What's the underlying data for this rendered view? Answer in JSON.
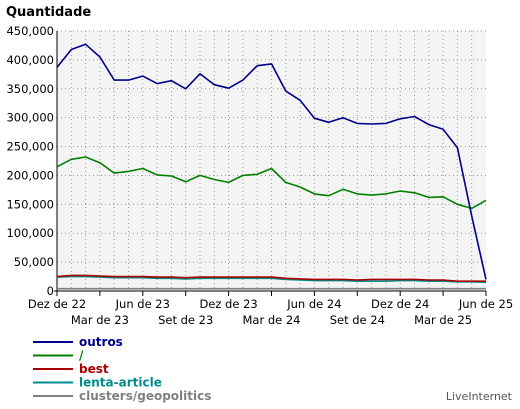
{
  "chart_data": {
    "type": "line",
    "ylabel": "Quantidade",
    "ylim": [
      0,
      450000
    ],
    "ytick_values": [
      0,
      50000,
      100000,
      150000,
      200000,
      250000,
      300000,
      350000,
      400000,
      450000
    ],
    "ytick_labels": [
      "0",
      "50,000",
      "100,000",
      "150,000",
      "200,000",
      "250,000",
      "300,000",
      "350,000",
      "400,000",
      "450,000"
    ],
    "x_start": "Dez de 22",
    "x_end": "Jun de 25",
    "x_upper_labels": [
      "Dez de 22",
      "Jun de 23",
      "Dez de 23",
      "Jun de 24",
      "Dez de 24",
      "Jun de 25"
    ],
    "x_lower_labels": [
      "Mar de 23",
      "Set de 23",
      "Mar de 24",
      "Set de 24",
      "Mar de 25"
    ],
    "grid": true,
    "legend_position": "bottom-left",
    "brand": "LiveInternet",
    "series": [
      {
        "name": "outros",
        "color": "#00008b",
        "values": [
          387000,
          418000,
          427000,
          405000,
          365000,
          365000,
          372000,
          359000,
          364000,
          350000,
          376000,
          357000,
          351000,
          365000,
          390000,
          393000,
          346000,
          330000,
          299000,
          292000,
          300000,
          290000,
          289000,
          290000,
          298000,
          302000,
          288000,
          280000,
          248000,
          130000,
          20000
        ]
      },
      {
        "name": "/",
        "color": "#008000",
        "values": [
          215000,
          228000,
          232000,
          222000,
          204000,
          207000,
          212000,
          201000,
          199000,
          189000,
          200000,
          193000,
          188000,
          200000,
          202000,
          212000,
          188000,
          180000,
          168000,
          165000,
          176000,
          168000,
          166000,
          168000,
          173000,
          170000,
          162000,
          163000,
          150000,
          143000,
          157000
        ]
      },
      {
        "name": "best",
        "color": "#aa0000",
        "values": [
          25000,
          27000,
          27000,
          26000,
          25000,
          25000,
          25000,
          24000,
          24000,
          23000,
          24000,
          24000,
          24000,
          24000,
          24000,
          24000,
          22000,
          21000,
          20000,
          20000,
          20000,
          19000,
          20000,
          20000,
          20000,
          20000,
          19000,
          19000,
          17000,
          17000,
          17000
        ]
      },
      {
        "name": "lenta-article",
        "color": "#008b8b",
        "values": [
          24000,
          25000,
          25000,
          24000,
          23000,
          23000,
          23000,
          22000,
          22000,
          21000,
          22000,
          22000,
          22000,
          22000,
          22000,
          22000,
          20000,
          19000,
          18000,
          18000,
          18000,
          17000,
          17000,
          17000,
          18000,
          18000,
          17000,
          17000,
          16000,
          16000,
          15000
        ]
      },
      {
        "name": "clusters/geopolitics",
        "color": "#808080",
        "values": [
          4000,
          4000,
          4000,
          4000,
          4000,
          4000,
          4000,
          4000,
          4000,
          4000,
          4000,
          4000,
          4000,
          4000,
          4000,
          4000,
          4000,
          4000,
          4000,
          4000,
          4000,
          4000,
          4000,
          4000,
          4000,
          4000,
          4000,
          4000,
          4000,
          4000,
          4000
        ]
      }
    ]
  }
}
